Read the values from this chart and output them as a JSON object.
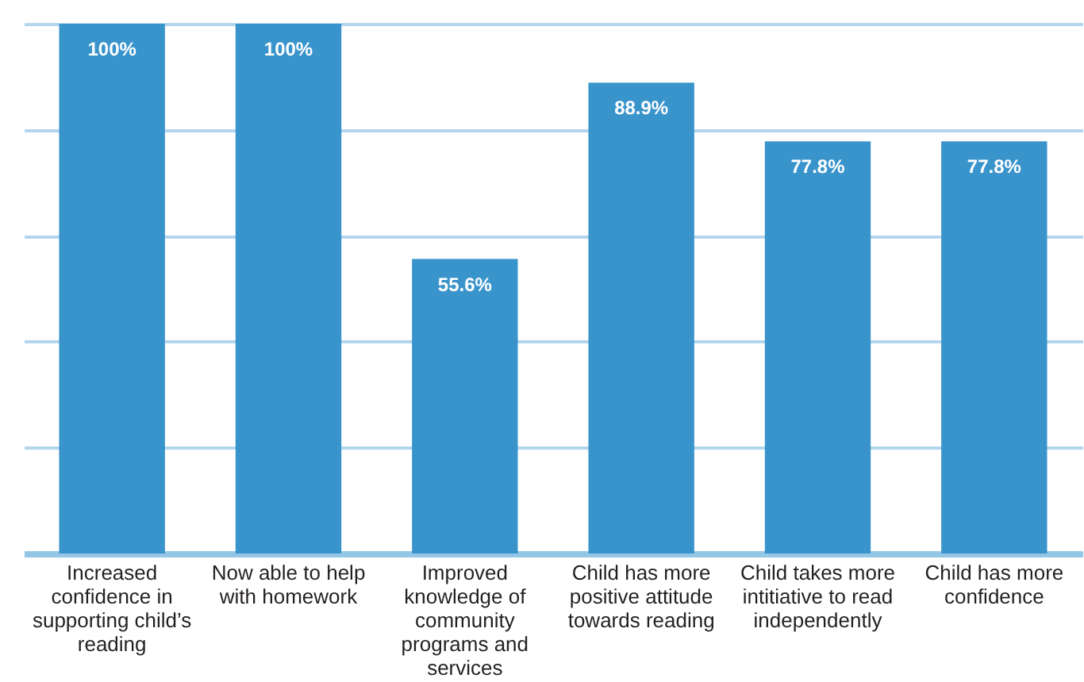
{
  "chart_data": {
    "type": "bar",
    "categories": [
      "Increased confidence in supporting child’s reading",
      "Now able to help with homework",
      "Improved knowledge of community programs and services",
      "Child has more positive attitude towards reading",
      "Child takes more intitiative to read independently",
      "Child has more confidence"
    ],
    "values": [
      100,
      100,
      55.6,
      88.9,
      77.8,
      77.8
    ],
    "value_labels": [
      "100%",
      "100%",
      "55.6%",
      "88.9%",
      "77.8%",
      "77.8%"
    ],
    "color": "#3a94cc",
    "ylim": [
      0,
      100
    ],
    "yticks": [
      {
        "value": 0,
        "label": null
      },
      {
        "value": 20,
        "label": null
      },
      {
        "value": 40,
        "label": null
      },
      {
        "value": 60,
        "label": null
      },
      {
        "value": 80,
        "label": null
      },
      {
        "value": 100,
        "label": null
      }
    ],
    "grid": "y",
    "tick_labels": "x"
  }
}
